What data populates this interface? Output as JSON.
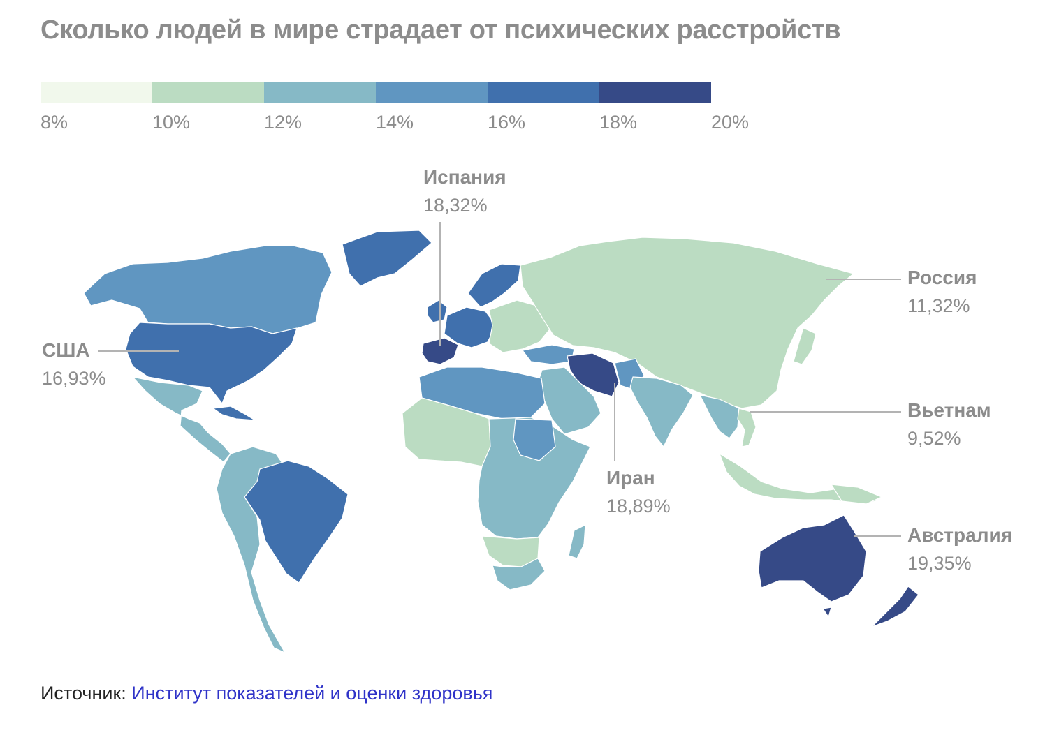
{
  "title": "Сколько людей в мире страдает от психических расстройств",
  "legend": {
    "colors": [
      "#f1f8ec",
      "#bbdcc2",
      "#86b9c6",
      "#6096c1",
      "#4070ad",
      "#364a87"
    ],
    "ticks": [
      "8%",
      "10%",
      "12%",
      "14%",
      "16%",
      "18%",
      "20%"
    ]
  },
  "callouts": {
    "spain": {
      "name": "Испания",
      "value": "18,32%"
    },
    "russia": {
      "name": "Россия",
      "value": "11,32%"
    },
    "usa": {
      "name": "США",
      "value": "16,93%"
    },
    "vietnam": {
      "name": "Вьетнам",
      "value": "9,52%"
    },
    "iran": {
      "name": "Иран",
      "value": "18,89%"
    },
    "australia": {
      "name": "Австралия",
      "value": "19,35%"
    }
  },
  "source": {
    "label": "Источник:",
    "link_text": "Институт показателей и оценки здоровья"
  }
}
